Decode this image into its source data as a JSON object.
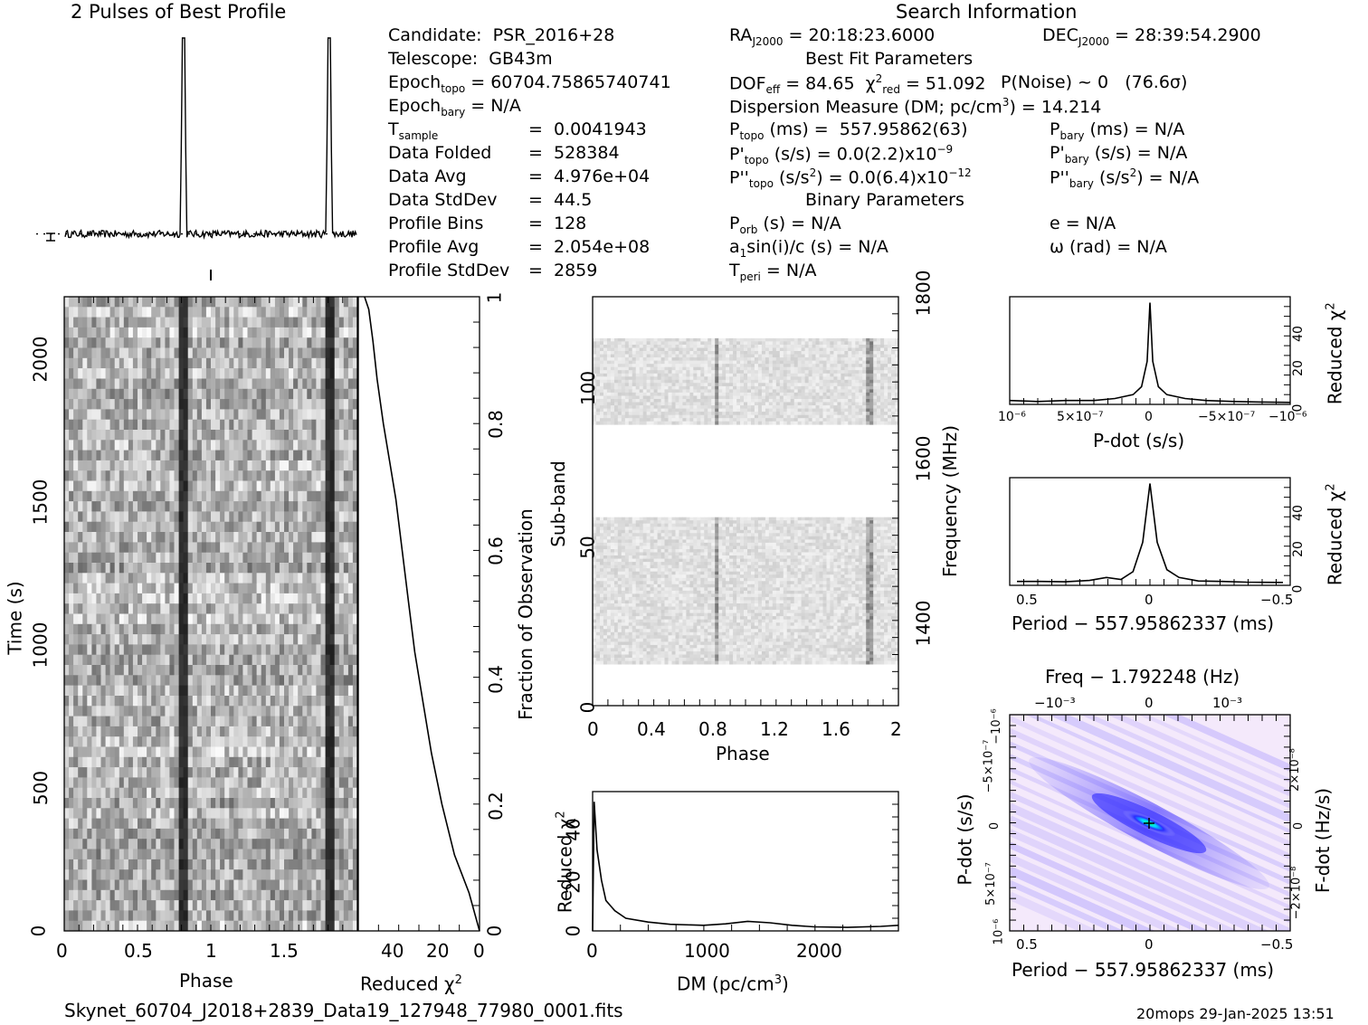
{
  "header": {
    "profile_title": "2 Pulses of Best Profile",
    "search_title": "Search Information",
    "best_fit_title": "Best Fit Parameters",
    "binary_title": "Binary Parameters",
    "filename": "Skynet_60704_J2018+2839_Data19_127948_77980_0001.fits",
    "footer_stamp": "20mops 29-Jan-2025 13:51"
  },
  "info_left": [
    "Candidate:  PSR_2016+28",
    "Telescope:  GB43m",
    "Epoch_topo = 60704.75865740741",
    "Epoch_bary = N/A",
    "T_sample   =  0.0041943",
    "Data Folded   =  528384",
    "Data Avg      =  4.976e+04",
    "Data StdDev   =  44.5",
    "Profile Bins  =  128",
    "Profile Avg   =  2.054e+08",
    "Profile StdDev =  2859"
  ],
  "info_mid": {
    "ra": "RA_J2000 = 20:18:23.6000",
    "dec": "DEC_J2000 = 28:39:54.2900",
    "dof": "DOF_eff = 84.65  χ²_red = 51.092",
    "pnoise": "P(Noise) ~ 0   (76.6σ)",
    "dm": "Dispersion Measure (DM; pc/cm³) = 14.214",
    "ptopo": "P_topo (ms) =  557.95862(63)",
    "pbary": "P_bary (ms) = N/A",
    "pdtopo": "P'_topo (s/s) = 0.0(2.2)x10⁻⁹",
    "pdbary": "P'_bary (s/s) = N/A",
    "pddtopo": "P''_topo (s/s²) = 0.0(6.4)x10⁻¹²",
    "pddbary": "P''_bary (s/s²) = N/A",
    "porb": "P_orb (s) = N/A",
    "ecc": "e = N/A",
    "a1": "a₁sin(i)/c (s) = N/A",
    "omega": "ω (rad) = N/A",
    "tperi": "T_peri = N/A"
  },
  "chart_data": [
    {
      "type": "line",
      "name": "profile",
      "title": "2 Pulses of Best Profile",
      "x": [
        0.0,
        0.2,
        0.4,
        0.6,
        0.78,
        0.8,
        0.82,
        0.84,
        1.0,
        1.2,
        1.4,
        1.6,
        1.78,
        1.8,
        1.82,
        1.84,
        2.0
      ],
      "y": [
        0.05,
        0.04,
        0.06,
        0.05,
        0.1,
        1.0,
        0.6,
        0.06,
        0.05,
        0.04,
        0.06,
        0.05,
        0.1,
        1.0,
        0.6,
        0.06,
        0.05
      ]
    },
    {
      "type": "heatmap",
      "name": "time-phase",
      "xlabel": "Phase",
      "ylabel": "Time (s)",
      "xticks": [
        "0",
        "0.5",
        "1",
        "1.5"
      ],
      "yticks": [
        "0",
        "500",
        "1000",
        "1500",
        "2000"
      ],
      "xlim": [
        0,
        2
      ],
      "ylim": [
        0,
        2215
      ],
      "pulse_phases": [
        0.81,
        1.81
      ]
    },
    {
      "type": "line",
      "name": "chi2-vs-time",
      "xlabel": "Reduced χ²",
      "ylabel": "Fraction of Observation",
      "xticks": [
        "40",
        "20",
        "0"
      ],
      "yticks": [
        "0",
        "0.2",
        "0.4",
        "0.6",
        "0.8",
        "1"
      ],
      "x": [
        0,
        5,
        12,
        18,
        23,
        27,
        31,
        34,
        37,
        40,
        43,
        46,
        49,
        51,
        53,
        55
      ],
      "y": [
        0,
        0.06,
        0.12,
        0.2,
        0.28,
        0.36,
        0.44,
        0.52,
        0.6,
        0.68,
        0.74,
        0.8,
        0.87,
        0.93,
        0.98,
        1.0
      ],
      "xlim": [
        58,
        0
      ],
      "ylim": [
        0,
        1
      ]
    },
    {
      "type": "heatmap",
      "name": "subband-phase",
      "xlabel": "Phase",
      "ylabel": "Sub-band",
      "y2label": "Frequency (MHz)",
      "xticks": [
        "0",
        "0.4",
        "0.8",
        "1.2",
        "1.6",
        "2"
      ],
      "yticks": [
        "0",
        "50",
        "100"
      ],
      "y2ticks": [
        "1400",
        "1600",
        "1800"
      ],
      "xlim": [
        0,
        2
      ],
      "ylim": [
        0,
        128
      ],
      "filled_bands": [
        [
          13,
          59
        ],
        [
          88,
          115
        ]
      ],
      "pulse_phases": [
        0.81,
        1.81
      ]
    },
    {
      "type": "line",
      "name": "chi2-vs-dm",
      "xlabel": "DM (pc/cm³)",
      "ylabel": "Reduced χ²",
      "xticks": [
        "0",
        "1000",
        "2000"
      ],
      "yticks": [
        "0",
        "20",
        "40"
      ],
      "x": [
        0,
        14,
        40,
        80,
        120,
        200,
        300,
        500,
        700,
        1000,
        1200,
        1400,
        1600,
        1800,
        2000,
        2300,
        2600,
        2760
      ],
      "y": [
        0,
        51,
        32,
        20,
        12,
        8,
        5,
        3.5,
        2.6,
        2.2,
        2.8,
        3.8,
        3.2,
        2.2,
        1.6,
        1.4,
        1.8,
        2.2
      ],
      "xlim": [
        0,
        2760
      ],
      "ylim": [
        0,
        55
      ]
    },
    {
      "type": "line",
      "name": "chi2-vs-pdot",
      "xlabel": "P-dot (s/s)",
      "ylabel": "Reduced χ²",
      "xticks": [
        "10⁻⁶",
        "5×10⁻⁷",
        "0",
        "−5×10⁻⁷",
        "−10⁻⁶"
      ],
      "yticks": [
        "0",
        "20",
        "40"
      ],
      "x": [
        1.0,
        0.8,
        0.6,
        0.4,
        0.25,
        0.12,
        0.06,
        0.02,
        0.0,
        -0.02,
        -0.06,
        -0.12,
        -0.25,
        -0.4,
        -0.6,
        -0.8,
        -1.0
      ],
      "y": [
        2,
        1.5,
        2,
        2,
        3,
        5,
        9,
        22,
        52,
        22,
        9,
        5,
        3,
        2,
        1.5,
        1.2,
        1
      ],
      "xlim": [
        1.0,
        -1.0
      ],
      "ylim": [
        0,
        55
      ]
    },
    {
      "type": "line",
      "name": "chi2-vs-period",
      "xlabel": "Period − 557.95862337 (ms)",
      "ylabel": "Reduced χ²",
      "xticks": [
        "0.5",
        "0",
        "−0.5"
      ],
      "yticks": [
        "0",
        "20",
        "40"
      ],
      "x": [
        0.55,
        0.45,
        0.35,
        0.25,
        0.18,
        0.12,
        0.07,
        0.03,
        0.0,
        -0.03,
        -0.07,
        -0.12,
        -0.2,
        -0.3,
        -0.4,
        -0.55
      ],
      "y": [
        2,
        2,
        1.8,
        2.5,
        4,
        3,
        7,
        22,
        52,
        22,
        8,
        4,
        2.2,
        2,
        1.6,
        1.5
      ],
      "xlim": [
        0.58,
        -0.58
      ],
      "ylim": [
        0,
        55
      ]
    },
    {
      "type": "heatmap",
      "name": "pdot-period",
      "title": "Freq − 1.792248 (Hz)",
      "xlabel": "Period − 557.95862337 (ms)",
      "ylabel": "P-dot (s/s)",
      "y2label": "F-dot (Hz/s)",
      "xticks": [
        "0.5",
        "0",
        "−0.5"
      ],
      "x2ticks": [
        "−10⁻³",
        "0",
        "10⁻³"
      ],
      "yticks": [
        "10⁻⁶",
        "5×10⁻⁷",
        "0",
        "−5×10⁻⁷",
        "−10⁻⁶"
      ],
      "y2ticks": [
        "−2×10⁻⁸",
        "0",
        "2×10⁻⁸"
      ],
      "xlim": [
        0.58,
        -0.58
      ],
      "ylim": [
        1.0,
        -1.0
      ]
    }
  ]
}
